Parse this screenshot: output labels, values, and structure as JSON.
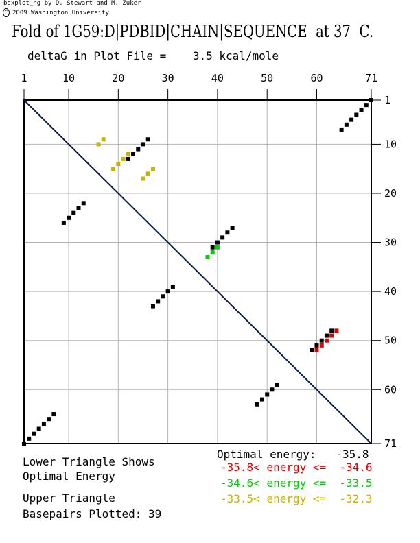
{
  "header": {
    "credit_line": "boxplot_ng by D. Stewart and M. Zuker",
    "copyright_symbol": "C",
    "copyright_line": "2009 Washington University",
    "title": "Fold of 1G59:D|PDBID|CHAIN|SEQUENCE  at 37  C.",
    "deltag_label": "deltaG in Plot File =",
    "deltag_value": "3.5 kcal/mole"
  },
  "legend": {
    "lower_triangle_line1": "Lower Triangle Shows",
    "lower_triangle_line2": "Optimal Energy",
    "upper_triangle_line1": "Upper Triangle",
    "basepairs_label": "Basepairs Plotted: 39",
    "optimal_energy": "Optimal energy:   -35.8",
    "band_red": "-35.8< energy <=  -34.6",
    "band_green": "-34.6< energy <=  -33.5",
    "band_yellow": "-33.5< energy <=  -32.3"
  },
  "colors": {
    "optimal": "#000000",
    "band_red": "#e00000",
    "band_green": "#00d000",
    "band_yellow": "#c8b400",
    "grid": "#b4b4b4",
    "diagonal": "#0a1a4a"
  },
  "chart_data": {
    "type": "dotplot",
    "sequence_length": 71,
    "x_ticks": [
      1,
      10,
      20,
      30,
      40,
      50,
      60,
      71
    ],
    "y_ticks": [
      1,
      10,
      20,
      30,
      40,
      50,
      60,
      71
    ],
    "grid": true,
    "series": [
      {
        "name": "optimal",
        "color": "#000000",
        "points": [
          [
            1,
            71
          ],
          [
            2,
            70
          ],
          [
            3,
            69
          ],
          [
            4,
            68
          ],
          [
            5,
            67
          ],
          [
            6,
            66
          ],
          [
            7,
            65
          ],
          [
            9,
            26
          ],
          [
            10,
            25
          ],
          [
            11,
            24
          ],
          [
            12,
            23
          ],
          [
            13,
            22
          ],
          [
            22,
            13
          ],
          [
            23,
            12
          ],
          [
            24,
            11
          ],
          [
            25,
            10
          ],
          [
            26,
            9
          ],
          [
            27,
            43
          ],
          [
            28,
            42
          ],
          [
            29,
            41
          ],
          [
            30,
            40
          ],
          [
            31,
            39
          ],
          [
            39,
            31
          ],
          [
            40,
            30
          ],
          [
            41,
            29
          ],
          [
            42,
            28
          ],
          [
            43,
            27
          ],
          [
            48,
            63
          ],
          [
            49,
            62
          ],
          [
            50,
            61
          ],
          [
            51,
            60
          ],
          [
            52,
            59
          ],
          [
            59,
            52
          ],
          [
            60,
            51
          ],
          [
            61,
            50
          ],
          [
            62,
            49
          ],
          [
            63,
            48
          ],
          [
            65,
            7
          ],
          [
            66,
            6
          ],
          [
            67,
            5
          ],
          [
            68,
            4
          ],
          [
            69,
            3
          ],
          [
            70,
            2
          ],
          [
            71,
            1
          ]
        ]
      },
      {
        "name": "-35.8< energy <= -34.6",
        "color": "#e00000",
        "points": [
          [
            60,
            52
          ],
          [
            61,
            51
          ],
          [
            62,
            50
          ],
          [
            63,
            49
          ],
          [
            64,
            48
          ]
        ]
      },
      {
        "name": "-34.6< energy <= -33.5",
        "color": "#00d000",
        "points": [
          [
            38,
            33
          ],
          [
            39,
            32
          ],
          [
            40,
            31
          ]
        ]
      },
      {
        "name": "-33.5< energy <= -32.3",
        "color": "#c8b400",
        "points": [
          [
            16,
            10
          ],
          [
            17,
            9
          ],
          [
            19,
            15
          ],
          [
            20,
            14
          ],
          [
            21,
            13
          ],
          [
            22,
            12
          ],
          [
            25,
            17
          ],
          [
            26,
            16
          ],
          [
            27,
            15
          ]
        ]
      }
    ]
  }
}
